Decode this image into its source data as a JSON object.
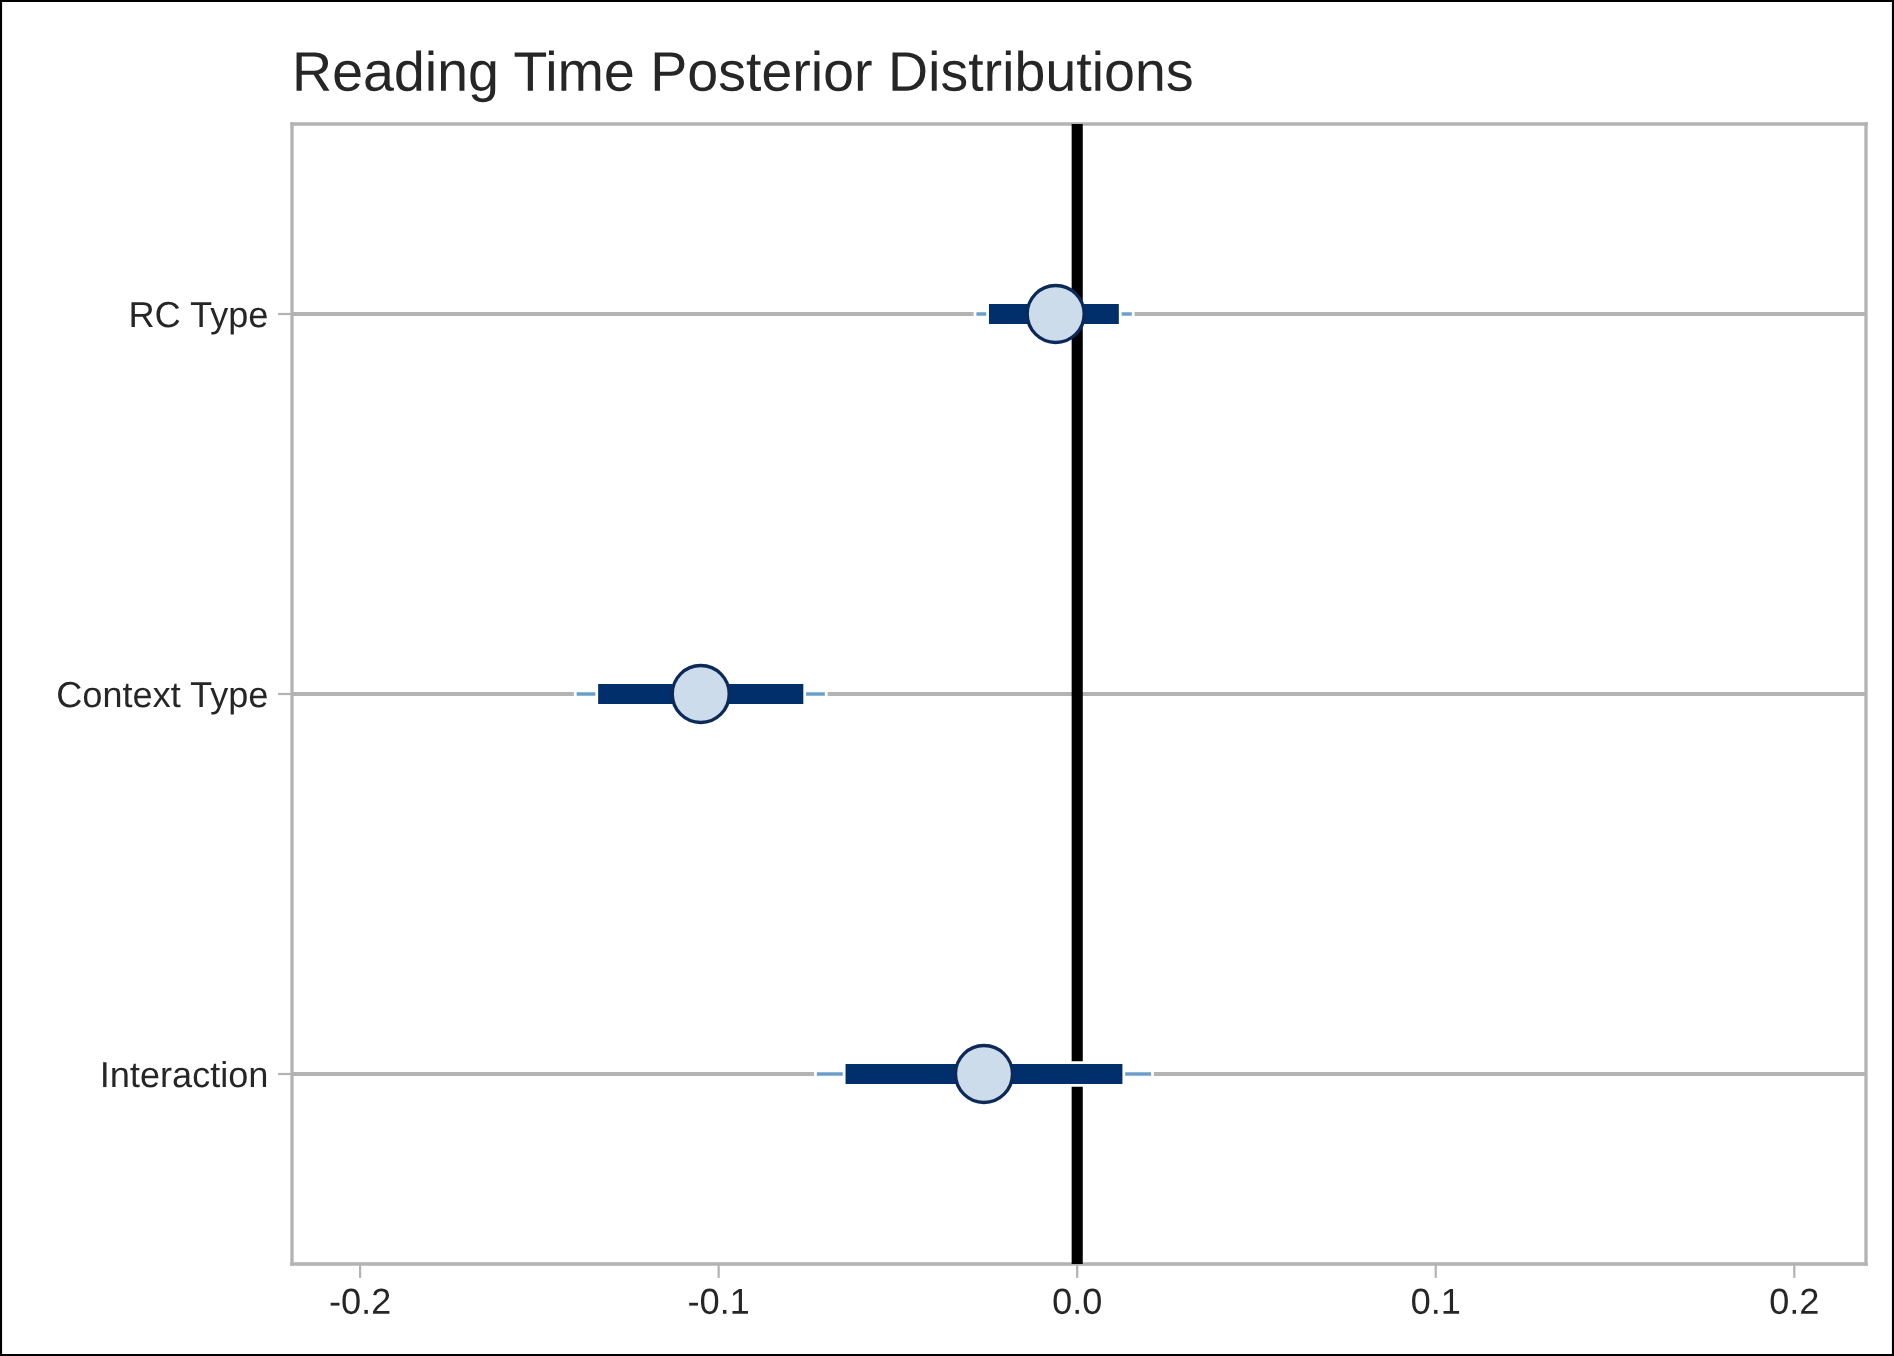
{
  "chart_data": {
    "type": "scatter",
    "orientation": "horizontal",
    "title": "Reading Time Posterior Distributions",
    "categories": [
      "RC Type",
      "Context Type",
      "Interaction"
    ],
    "series": [
      {
        "type": "bar",
        "color": "#6a9fc8",
        "base": [
          -0.0285,
          -0.14,
          -0.073
        ],
        "values": [
          0.0441,
          0.07,
          0.094
        ]
      },
      {
        "type": "bar",
        "color": "#002f6c",
        "base": [
          -0.025,
          -0.134,
          -0.065
        ],
        "values": [
          0.037,
          0.058,
          0.078
        ]
      },
      {
        "marker": "circle",
        "color": "#cddcea",
        "values": [
          -0.006,
          -0.105,
          -0.026
        ]
      }
    ],
    "xlim": [
      -0.219,
      0.22
    ],
    "xticks": [
      {
        "value": -0.2,
        "label": "-0.2"
      },
      {
        "value": -0.1,
        "label": "-0.1"
      },
      {
        "value": 0,
        "label": "0.0"
      },
      {
        "value": 0.1,
        "label": "0.1"
      },
      {
        "value": 0.2,
        "label": "0.2"
      }
    ],
    "ref_lines": [
      {
        "axis": "x",
        "value": 0,
        "color": "#000000"
      }
    ],
    "grid": "y"
  }
}
